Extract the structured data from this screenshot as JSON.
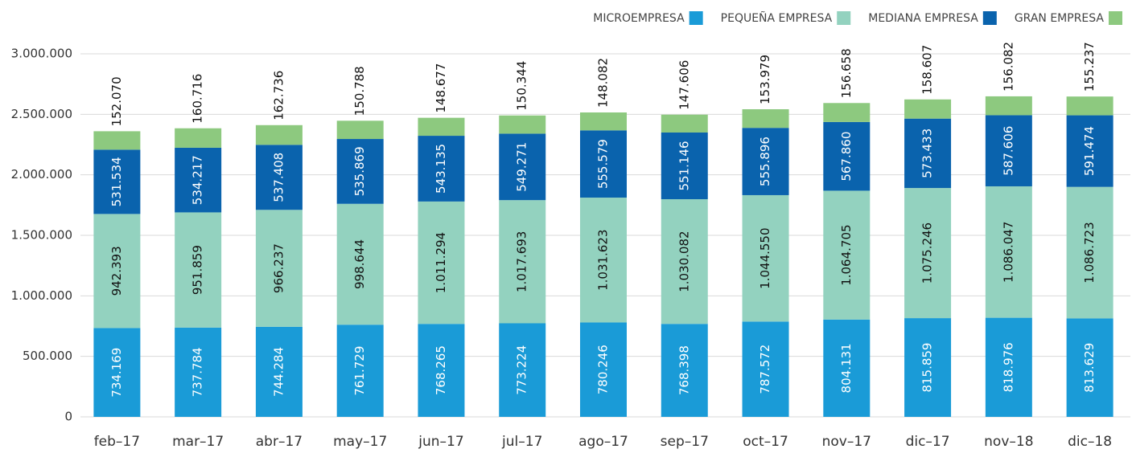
{
  "chart_data": {
    "type": "stacked_bar",
    "categories": [
      "feb–17",
      "mar–17",
      "abr–17",
      "may–17",
      "jun–17",
      "jul–17",
      "ago–17",
      "sep–17",
      "oct–17",
      "nov–17",
      "dic–17",
      "nov–18",
      "dic–18"
    ],
    "series": [
      {
        "name": "MICROEMPRESA",
        "color": "#1a9bd7",
        "values": [
          734169,
          737784,
          744284,
          761729,
          768265,
          773224,
          780246,
          768398,
          787572,
          804131,
          815859,
          818976,
          813629
        ],
        "value_labels": [
          "734.169",
          "737.784",
          "744.284",
          "761.729",
          "768.265",
          "773.224",
          "780.246",
          "768.398",
          "787.572",
          "804.131",
          "815.859",
          "818.976",
          "813.629"
        ]
      },
      {
        "name": "PEQUEÑA EMPRESA",
        "color": "#93d2bf",
        "values": [
          942393,
          951859,
          966237,
          998644,
          1011294,
          1017693,
          1031623,
          1030082,
          1044550,
          1064705,
          1075246,
          1086047,
          1086723
        ],
        "value_labels": [
          "942.393",
          "951.859",
          "966.237",
          "998.644",
          "1.011.294",
          "1.017.693",
          "1.031.623",
          "1.030.082",
          "1.044.550",
          "1.064.705",
          "1.075.246",
          "1.086.047",
          "1.086.723"
        ]
      },
      {
        "name": "MEDIANA EMPRESA",
        "color": "#0a63ad",
        "values": [
          531534,
          534217,
          537408,
          535869,
          543135,
          549271,
          555579,
          551146,
          555896,
          567860,
          573433,
          587606,
          591474
        ],
        "value_labels": [
          "531.534",
          "534.217",
          "537.408",
          "535.869",
          "543.135",
          "549.271",
          "555.579",
          "551.146",
          "555.896",
          "567.860",
          "573.433",
          "587.606",
          "591.474"
        ]
      },
      {
        "name": "GRAN EMPRESA",
        "color": "#8dc97f",
        "values": [
          152070,
          160716,
          162736,
          150788,
          148677,
          150344,
          148082,
          147606,
          153979,
          156658,
          158607,
          156082,
          155237
        ],
        "value_labels": [
          "152.070",
          "160.716",
          "162.736",
          "150.788",
          "148.677",
          "150.344",
          "148.082",
          "147.606",
          "153.979",
          "156.658",
          "158.607",
          "156.082",
          "155.237"
        ]
      }
    ],
    "ylim": [
      0,
      3000000
    ],
    "yticks": [
      0,
      {
        "value": 500000,
        "label": "500.000"
      },
      {
        "value": 1000000,
        "label": "1.000.000"
      },
      {
        "value": 1500000,
        "label": "1.500.000"
      },
      {
        "value": 2000000,
        "label": "2.000.000"
      },
      {
        "value": 2500000,
        "label": "2.500.000"
      },
      {
        "value": 3000000,
        "label": "3.000.000"
      }
    ],
    "grid": true,
    "legend": "top-right"
  }
}
